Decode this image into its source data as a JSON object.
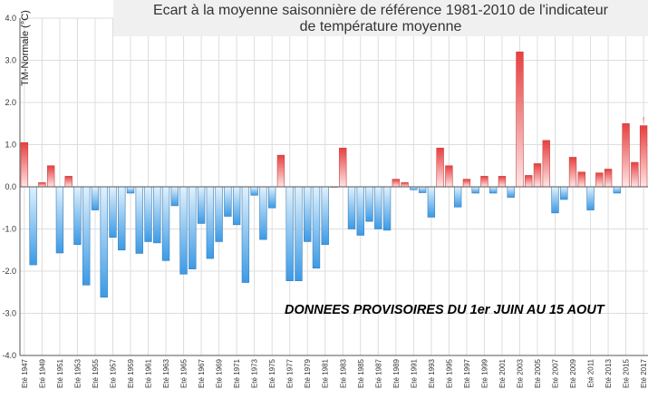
{
  "chart_data": {
    "type": "bar",
    "title": "Ecart à la moyenne saisonnière de référence 1981-2010 de l'indicateur de température moyenne",
    "title_lines": [
      "Ecart à la moyenne saisonnière de référence 1981-2010 de l'indicateur",
      "de température moyenne"
    ],
    "xlabel": "",
    "ylabel": "TM-Normale (°C)",
    "ylim": [
      -4.0,
      4.0
    ],
    "yticks": [
      "-4.0",
      "-3.0",
      "-2.0",
      "-1.0",
      "0.0",
      "1.0",
      "2.0",
      "3.0",
      "4.0"
    ],
    "grid": true,
    "xtick_labels": [
      "Eté 1947",
      "Eté 1949",
      "Eté 1951",
      "Eté 1953",
      "Eté 1955",
      "Eté 1957",
      "Eté 1959",
      "Eté 1961",
      "Eté 1963",
      "Eté 1965",
      "Eté 1967",
      "Eté 1969",
      "Eté 1971",
      "Eté 1973",
      "Eté 1975",
      "Eté 1977",
      "Eté 1979",
      "Eté 1981",
      "Eté 1983",
      "Eté 1985",
      "Eté 1987",
      "Eté 1989",
      "Eté 1991",
      "Eté 1993",
      "Eté 1995",
      "Eté 1997",
      "Eté 1999",
      "Eté 2001",
      "Eté 2003",
      "Eté 2005",
      "Eté 2007",
      "Eté 2009",
      "Eté 2011",
      "Eté 2013",
      "Eté 2015",
      "Eté 2017"
    ],
    "years": [
      1947,
      1948,
      1949,
      1950,
      1951,
      1952,
      1953,
      1954,
      1955,
      1956,
      1957,
      1958,
      1959,
      1960,
      1961,
      1962,
      1963,
      1964,
      1965,
      1966,
      1967,
      1968,
      1969,
      1970,
      1971,
      1972,
      1973,
      1974,
      1975,
      1976,
      1977,
      1978,
      1979,
      1980,
      1981,
      1982,
      1983,
      1984,
      1985,
      1986,
      1987,
      1988,
      1989,
      1990,
      1991,
      1992,
      1993,
      1994,
      1995,
      1996,
      1997,
      1998,
      1999,
      2000,
      2001,
      2002,
      2003,
      2004,
      2005,
      2006,
      2007,
      2008,
      2009,
      2010,
      2011,
      2012,
      2013,
      2014,
      2015,
      2016,
      2017
    ],
    "values": [
      1.05,
      -1.85,
      0.1,
      0.5,
      -1.57,
      0.25,
      -1.37,
      -2.33,
      -0.55,
      -2.62,
      -1.2,
      -1.5,
      -0.15,
      -1.58,
      -1.3,
      -1.33,
      -1.75,
      -0.45,
      -2.07,
      -1.95,
      -0.87,
      -1.7,
      -1.3,
      -0.7,
      -0.9,
      -2.27,
      -0.2,
      -1.25,
      -0.5,
      0.75,
      -2.23,
      -2.23,
      -1.3,
      -1.93,
      -1.37,
      0.0,
      0.92,
      -1.0,
      -1.15,
      -0.82,
      -1.0,
      -1.03,
      0.18,
      0.1,
      -0.07,
      -0.14,
      -0.72,
      0.92,
      0.5,
      -0.48,
      0.18,
      -0.15,
      0.25,
      -0.15,
      0.25,
      -0.25,
      3.2,
      0.27,
      0.55,
      1.1,
      -0.62,
      -0.3,
      0.7,
      0.35,
      -0.55,
      0.33,
      0.42,
      -0.15,
      1.5,
      0.58,
      1.45
    ],
    "colors": {
      "positive": "#e83f3f",
      "negative": "#3a9ae6",
      "axis": "#555555",
      "grid": "#dddddd"
    },
    "marker": {
      "year": 2017,
      "symbol": "!"
    },
    "annotation": "DONNEES PROVISOIRES DU 1er JUIN AU 15 AOUT"
  }
}
